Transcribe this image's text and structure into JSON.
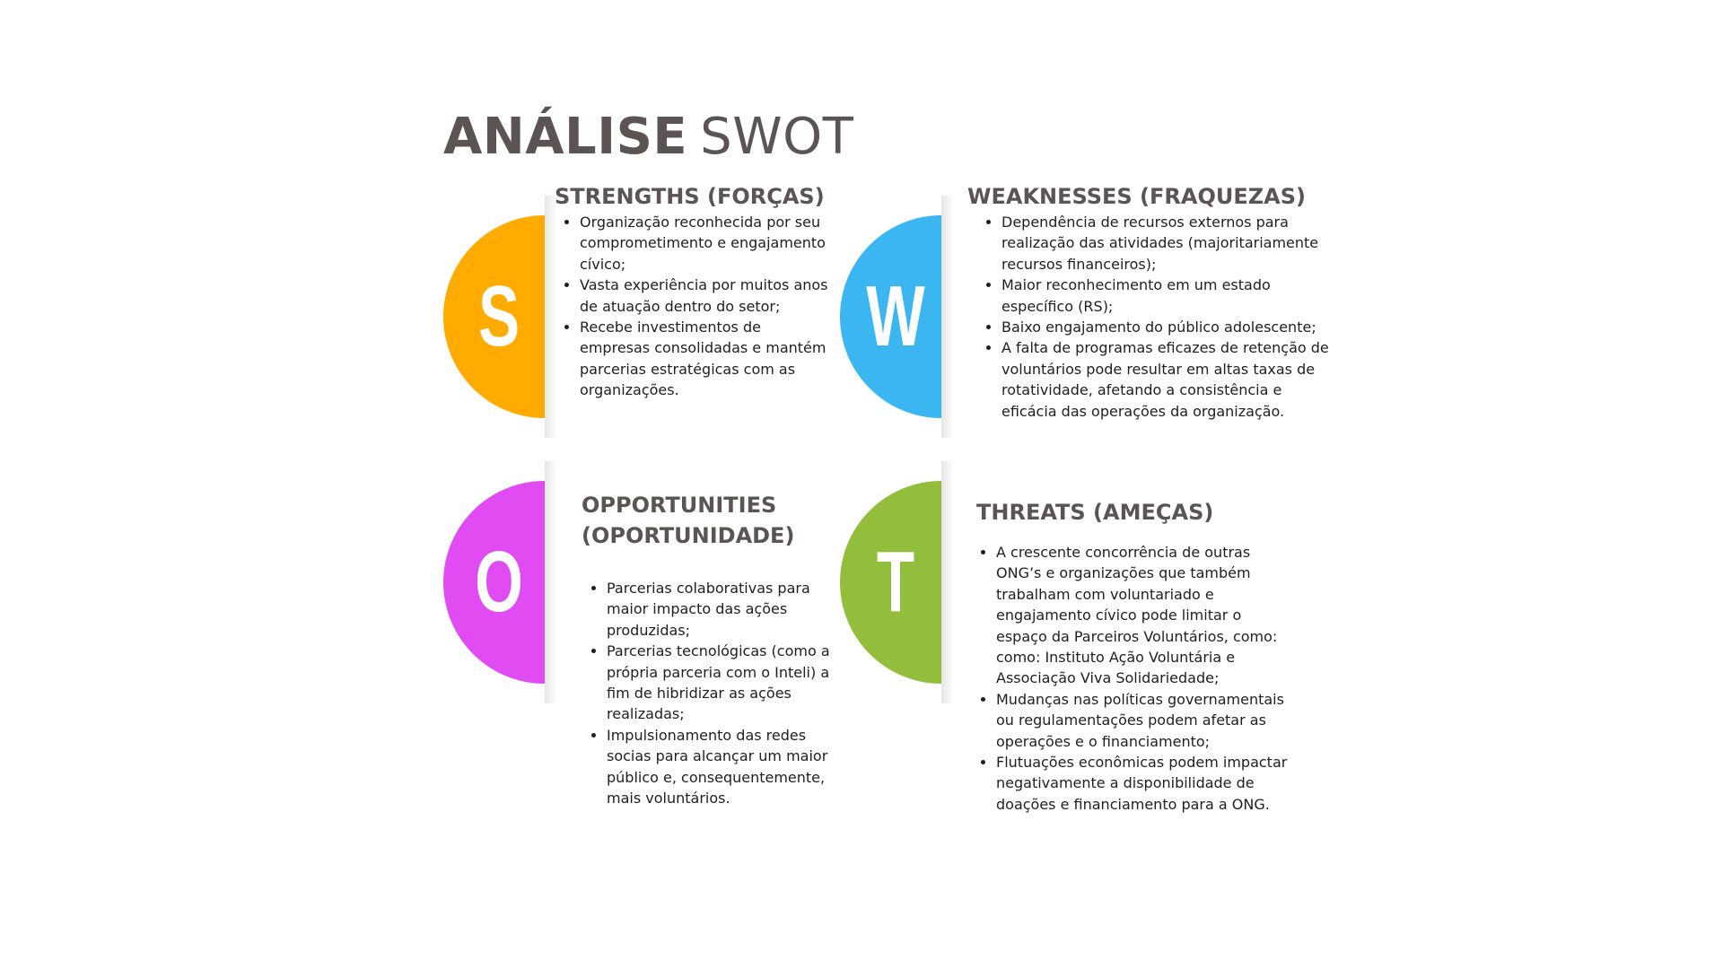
{
  "title": {
    "bold": "ANÁLISE",
    "light": "SWOT"
  },
  "quadrants": [
    {
      "letter": "S",
      "color": "#FFAB00",
      "heading": "STRENGTHS (FORÇAS)",
      "items": [
        "Organização reconhecida por seu comprometimento e engajamento cívico;",
        "Vasta experiência por muitos anos de atuação dentro do setor;",
        "Recebe investimentos de empresas consolidadas e mantém parcerias estratégicas com as organizações."
      ]
    },
    {
      "letter": "W",
      "color": "#3BB6F0",
      "heading": "WEAKNESSES (FRAQUEZAS)",
      "items": [
        "Dependência de recursos externos para realização das atividades (majoritariamente recursos financeiros);",
        "Maior reconhecimento em um estado específico (RS);",
        "Baixo engajamento do público adolescente;",
        "A falta de programas eficazes de retenção de voluntários pode resultar em altas taxas de rotatividade, afetando a consistência e eficácia das operações da organização."
      ]
    },
    {
      "letter": "O",
      "color": "#E04CF2",
      "heading": "OPPORTUNITIES\n(OPORTUNIDADE)",
      "items": [
        "Parcerias colaborativas para maior impacto das ações produzidas;",
        "Parcerias tecnológicas (como a própria parceria com o Inteli) a fim de hibridizar as ações realizadas;",
        "Impulsionamento das redes socias para alcançar um maior público e, consequentemente, mais voluntários."
      ]
    },
    {
      "letter": "T",
      "color": "#93BE3C",
      "heading": "THREATS (AMEÇAS)",
      "items": [
        "A crescente concorrência de outras ONG’s e organizações que também trabalham com voluntariado e engajamento cívico pode limitar o espaço da Parceiros Voluntários, como: como: Instituto Ação Voluntária e Associação Viva Solidariedade;",
        "Mudanças nas políticas governamentais ou regulamentações podem afetar as operações e o financiamento;",
        "Flutuações econômicas podem impactar negativamente a disponibilidade de doações e financiamento para a ONG."
      ]
    }
  ]
}
